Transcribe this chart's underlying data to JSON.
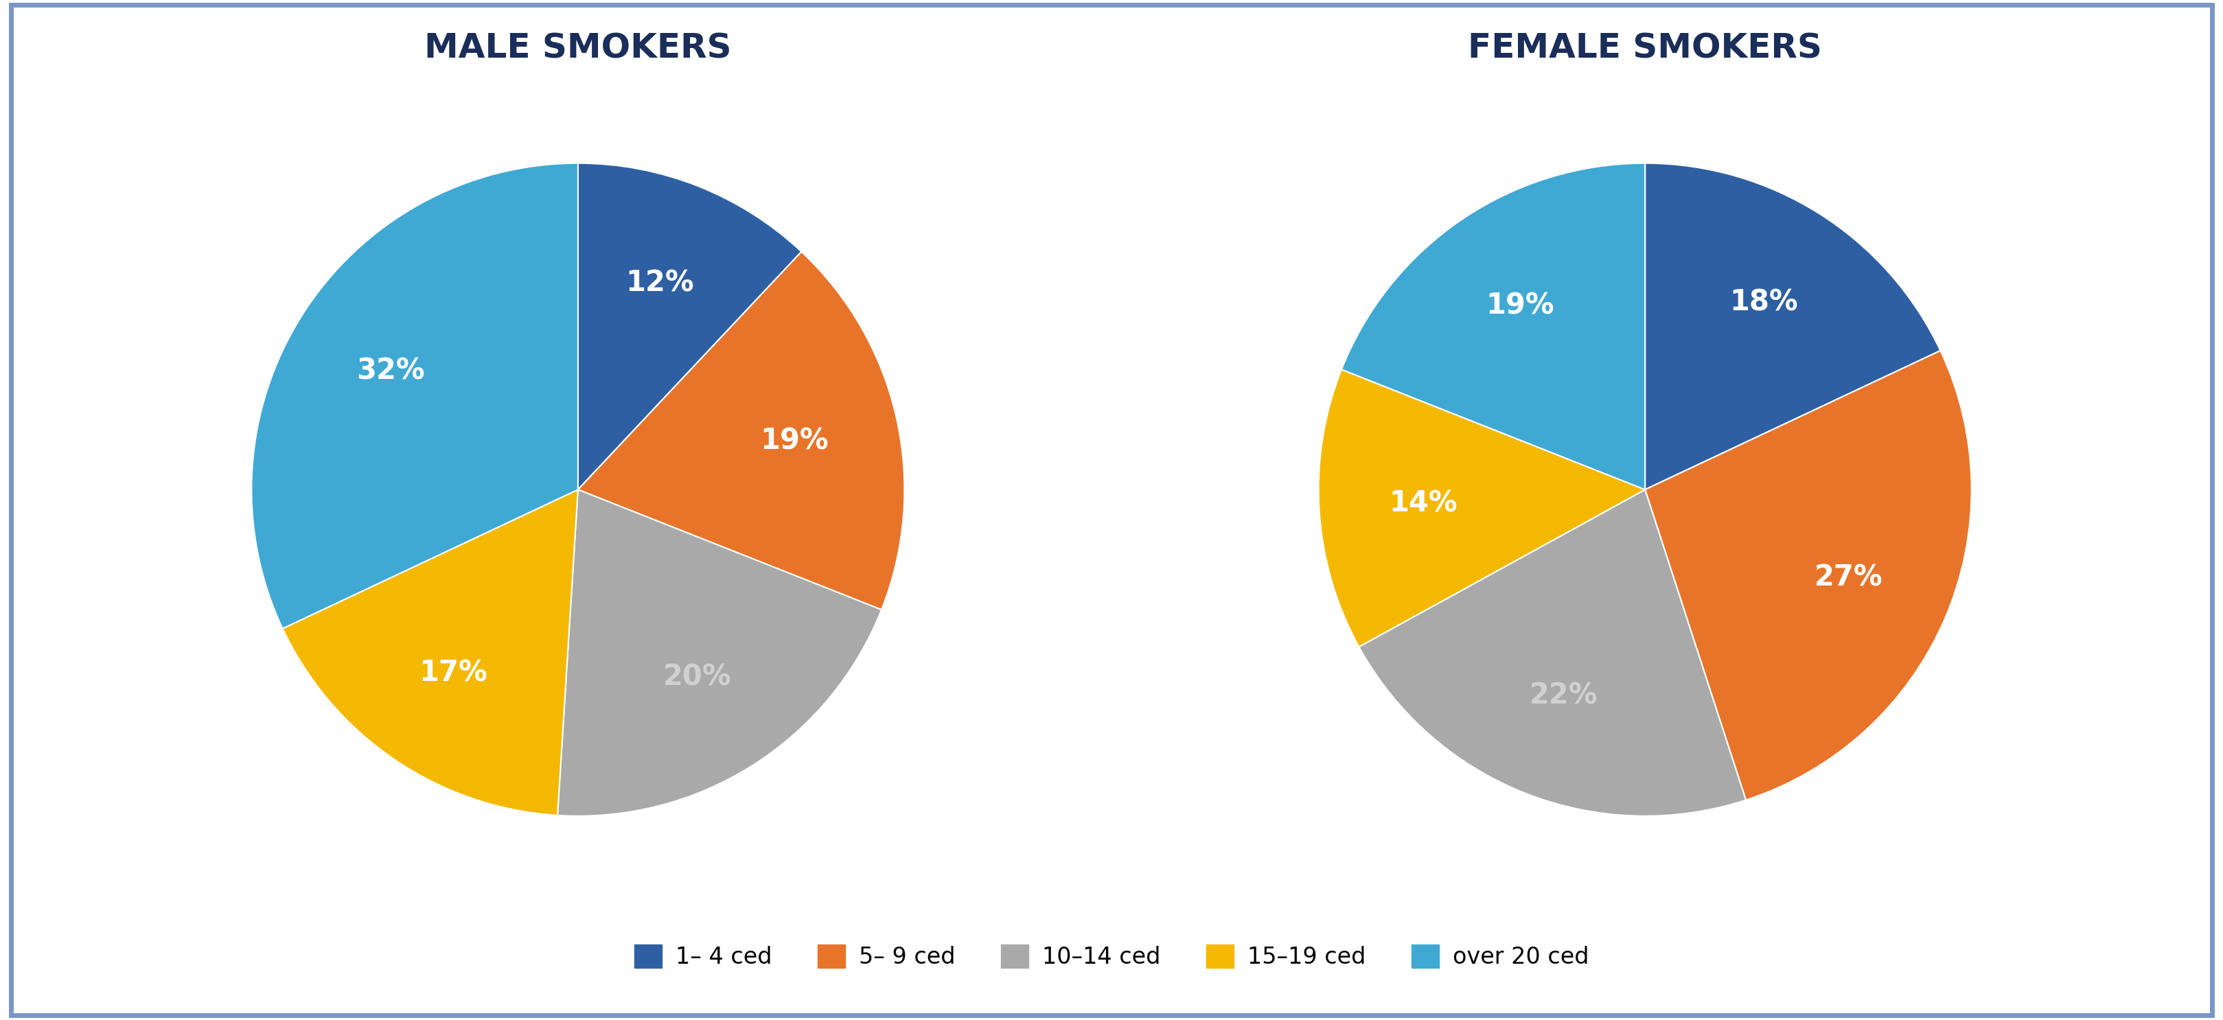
{
  "male_values": [
    12,
    19,
    20,
    17,
    32
  ],
  "female_values": [
    18,
    27,
    22,
    14,
    19
  ],
  "labels": [
    "1– 4 ced",
    "5– 9 ced",
    "10–14 ced",
    "15–19 ced",
    "over 20 ced"
  ],
  "colors": [
    "#2e5fa3",
    "#e8742a",
    "#a9a9a9",
    "#f5b800",
    "#3fa9d4"
  ],
  "male_title": "MALE SMOKERS",
  "female_title": "FEMALE SMOKERS",
  "male_pct_labels": [
    "12%",
    "19%",
    "20%",
    "17%",
    "32%"
  ],
  "female_pct_labels": [
    "18%",
    "27%",
    "22%",
    "14%",
    "19%"
  ],
  "background_color": "#ffffff",
  "border_color": "#7a96c8",
  "title_color": "#1a2e5a",
  "label_color": "#ffffff",
  "legend_label_color": "#444444",
  "male_startangle": 90,
  "female_startangle": 90,
  "male_pct_colors": [
    "#ffffff",
    "#ffffff",
    "#d0d0d0",
    "#ffffff",
    "#ffffff"
  ],
  "female_pct_colors": [
    "#ffffff",
    "#ffffff",
    "#d0d0d0",
    "#ffffff",
    "#ffffff"
  ]
}
